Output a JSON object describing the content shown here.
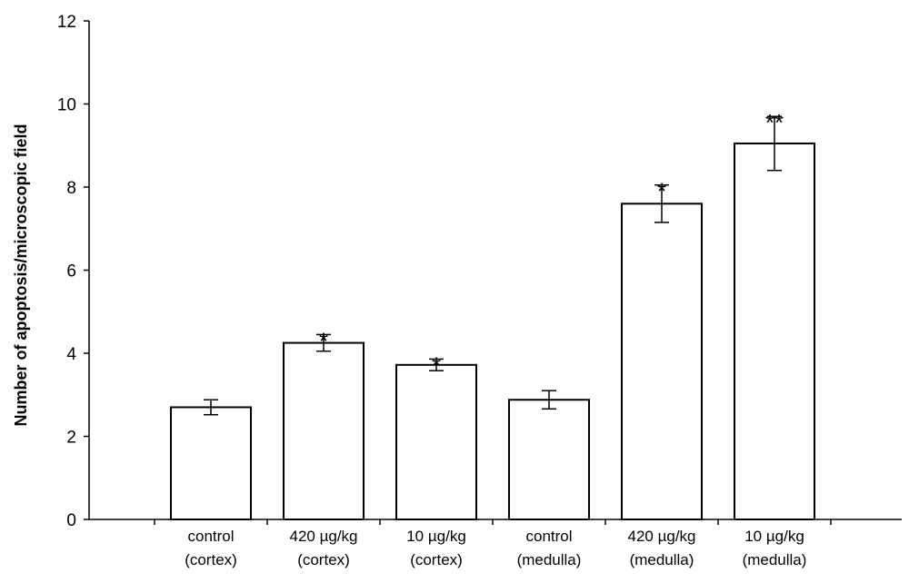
{
  "chart_data": {
    "type": "bar",
    "title": "",
    "xlabel": "",
    "ylabel": "Number of apoptosis/microscopic field",
    "ylim": [
      0,
      12
    ],
    "yticks": [
      0,
      2,
      4,
      6,
      8,
      10,
      12
    ],
    "categories": [
      [
        "control",
        "(cortex)"
      ],
      [
        "420 µg/kg",
        "(cortex)"
      ],
      [
        "10 µg/kg",
        "(cortex)"
      ],
      [
        "control",
        "(medulla)"
      ],
      [
        "420 µg/kg",
        "(medulla)"
      ],
      [
        "10 µg/kg",
        "(medulla)"
      ]
    ],
    "values": [
      2.7,
      4.25,
      3.72,
      2.88,
      7.6,
      9.05
    ],
    "errors": [
      0.18,
      0.2,
      0.14,
      0.22,
      0.45,
      0.65
    ],
    "annotations": [
      "",
      "*",
      "*",
      "",
      "*",
      "**"
    ]
  }
}
